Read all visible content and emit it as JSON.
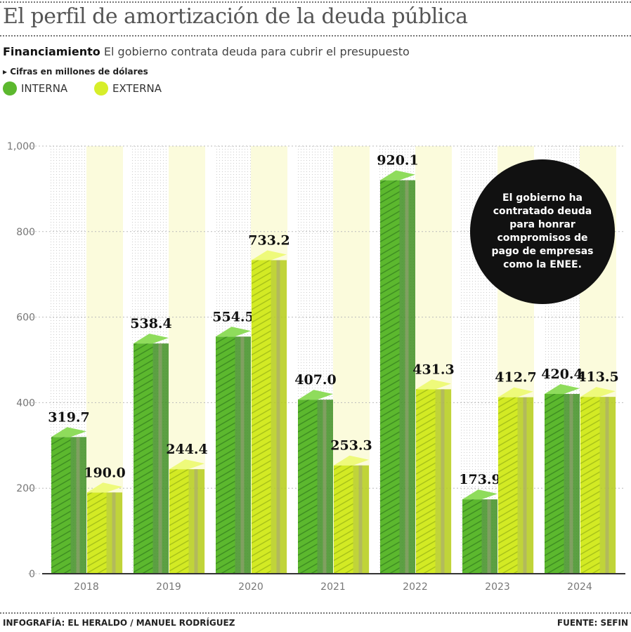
{
  "title": "El perfil de amortización de la deuda pública",
  "subtitle_bold": "Financiamiento",
  "subtitle": "El gobierno contrata deuda para cubrir el presupuesto",
  "units": "Cifras en millones de dólares",
  "annotation": "El gobierno ha contratado deuda para honrar compromisos de pago de empresas como la ENEE.",
  "footer_left": "INFOGRAFÍA: EL HERALDO / MANUEL RODRÍGUEZ",
  "footer_right": "FUENTE: SEFIN",
  "colors": {
    "interna": "#5cb82e",
    "externa": "#d7ee2a"
  },
  "chart_data": {
    "type": "bar",
    "categories": [
      "2018",
      "2019",
      "2020",
      "2021",
      "2022",
      "2023",
      "2024"
    ],
    "series": [
      {
        "name": "INTERNA",
        "values": [
          319.7,
          538.4,
          554.5,
          407.0,
          920.1,
          173.9,
          420.4
        ]
      },
      {
        "name": "EXTERNA",
        "values": [
          190.0,
          244.4,
          733.2,
          253.3,
          431.3,
          412.7,
          413.5
        ]
      }
    ],
    "ylim": [
      0,
      1000
    ],
    "yticks": [
      "0",
      "200",
      "400",
      "600",
      "800",
      "1,000"
    ],
    "grid": true,
    "legend": "top-left"
  }
}
